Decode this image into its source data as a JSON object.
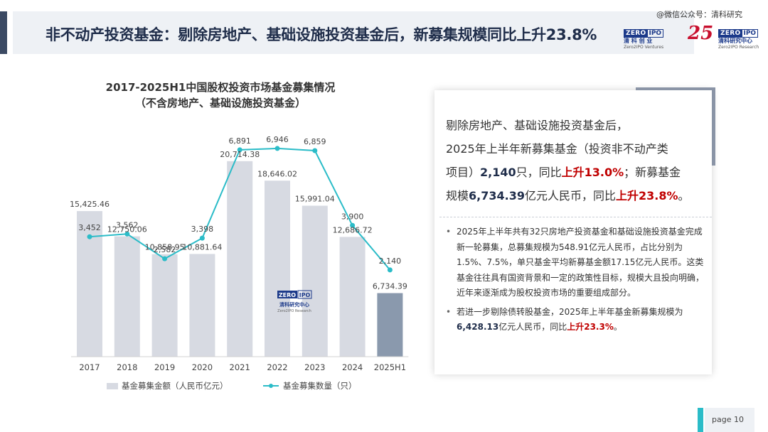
{
  "header": {
    "title": "非不动产投资基金：剔除房地产、基础设施投资基金后，新募集规模同比上升23.8%",
    "wechat": "@微信公众号：清科研究",
    "logo_zero": "ZERO",
    "logo_ipo": "IPO",
    "logo_zero_cn": "清 科 创 业",
    "logo_zero_en": "Zero2IPO Ventures",
    "logo_25": "25",
    "logo_research_cn": "清科研究中心",
    "logo_research_en": "Zero2IPO Research"
  },
  "chart_title_line1": "2017-2025H1中国股权投资市场基金募集情况",
  "chart_title_line2": "（不含房地产、基础设施投资基金）",
  "chart_data": {
    "type": "bar",
    "categories": [
      "2017",
      "2018",
      "2019",
      "2020",
      "2021",
      "2022",
      "2023",
      "2024",
      "2025H1"
    ],
    "series": [
      {
        "name": "基金募集金额（人民币亿元）",
        "type": "bar",
        "values": [
          15425.46,
          12750.06,
          10858.95,
          10881.64,
          20714.38,
          18646.02,
          15991.04,
          12686.72,
          6734.39
        ],
        "labels": [
          "15,425.46",
          "12,750.06",
          "10,858.95",
          "10,881.64",
          "20,714.38",
          "18,646.02",
          "15,991.04",
          "12,686.72",
          "6,734.39"
        ],
        "color": "#d7dae2",
        "highlight_color": "#8a99ad"
      },
      {
        "name": "基金募集数量（只）",
        "type": "line",
        "values": [
          3452,
          3562,
          2582,
          3398,
          6891,
          6946,
          6859,
          3900,
          2140
        ],
        "labels": [
          "3,452",
          "3,562",
          "2,582",
          "3,398",
          "6,891",
          "6,946",
          "6,859",
          "3,900",
          "2,140"
        ],
        "color": "#2bbcc8"
      }
    ],
    "watermark": {
      "zero": "ZERO",
      "ipo": "IPO",
      "cn": "清科研究中心",
      "en": "Zero2IPO Research"
    }
  },
  "summary": {
    "line1": "剔除房地产、基础设施投资基金后，",
    "line2": "2025年上半年新募集基金（投资非不动产类",
    "p3a": "项目）",
    "p3b": "2,140",
    "p3c": "只，同比",
    "p3d": "上升13.0%",
    "p3e": "；新募基金",
    "p4a": "规模",
    "p4b": "6,734.39",
    "p4c": "亿元人民币，同比",
    "p4d": "上升23.8%",
    "p4e": "。"
  },
  "bullets": {
    "b1": "2025年上半年共有32只房地产投资基金和基础设施投资基金完成新一轮募集，总募集规模为548.91亿元人民币，占比分别为1.5%、7.5%，单只基金平均新募基金额17.15亿元人民币。这类基金往往具有国资背景和一定的政策性目标，规模大且投向明确，近年来逐渐成为股权投资市场的重要组成部分。",
    "b2a": "若进一步剔除债转股基金，2025年上半年基金新募集规模为",
    "b2b": "6,428.13",
    "b2c": "亿元人民币，同比",
    "b2d": "上升23.3%",
    "b2e": "。"
  },
  "footer": {
    "page": "page  10"
  }
}
